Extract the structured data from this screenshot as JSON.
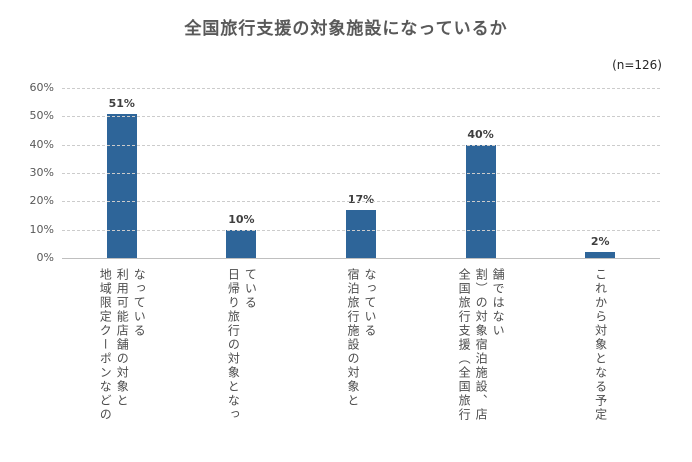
{
  "chart": {
    "title": "全国旅行支援の対象施設になっているか",
    "n_label": "(n=126)"
  },
  "chart_data": {
    "type": "bar",
    "title": "全国旅行支援の対象施設になっているか",
    "subtitle": "(n=126)",
    "sample_size": 126,
    "categories": [
      "地域限定クーポンなどの利用可能店舗の対象となっている",
      "日帰り旅行の対象となっている",
      "宿泊旅行施設の対象となっている",
      "全国旅行支援（全国旅行割）の対象宿泊施設、店舗ではない",
      "これから対象となる予定"
    ],
    "category_lines": [
      [
        "地域限定クーポンなどの",
        "利用可能店舗の対象と",
        "なっている"
      ],
      [
        "日帰り旅行の対象となっ",
        "ている"
      ],
      [
        "宿泊旅行施設の対象と",
        "なっている"
      ],
      [
        "全国旅行支援（全国旅行",
        "割）の対象宿泊施設、店",
        "舗ではない"
      ],
      [
        "これから対象となる予定"
      ]
    ],
    "values": [
      51,
      10,
      17,
      40,
      2
    ],
    "value_labels": [
      "51%",
      "10%",
      "17%",
      "40%",
      "2%"
    ],
    "xlabel": "",
    "ylabel": "",
    "ylim": [
      0,
      60
    ],
    "ytick_step": 10,
    "ytick_labels": [
      "0%",
      "10%",
      "20%",
      "30%",
      "40%",
      "50%",
      "60%"
    ],
    "grid": "dashed-horizontal",
    "legend": "none",
    "bar_color": "#2e6599",
    "colors": {
      "title_text": "#595959",
      "axis_text": "#595959",
      "value_label_text": "#3f3f3f",
      "gridline": "#cccccc",
      "axis_line": "#bfbfbf",
      "background": "#ffffff"
    }
  }
}
